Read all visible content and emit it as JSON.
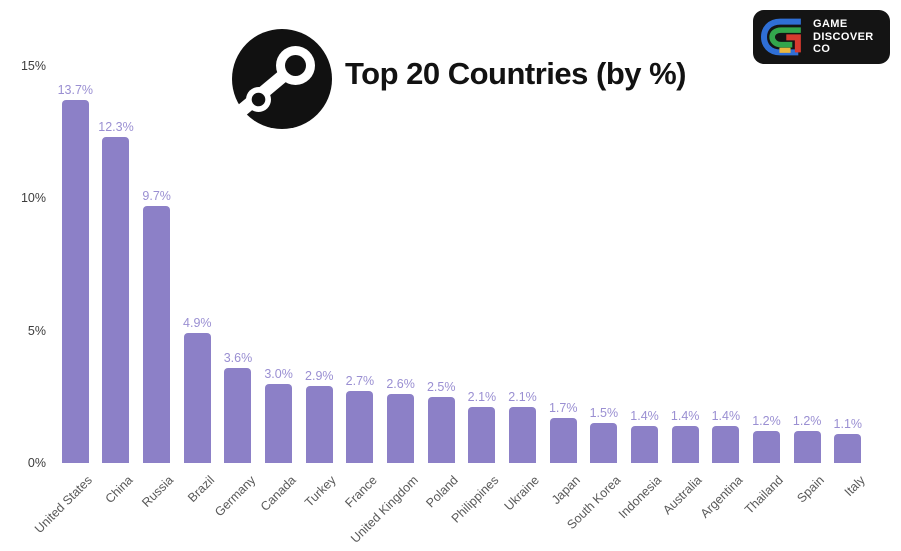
{
  "header": {
    "title": "Top 20 Countries (by %)",
    "brand_lines": [
      "GAME",
      "DISCOVER",
      "CO"
    ]
  },
  "colors": {
    "bar": "#8C80C7",
    "value_label": "#9A8FD2",
    "y_tick": "#3d3d3d",
    "x_tick": "#595959",
    "brand_blue": "#2F6FD6",
    "brand_green": "#33A64C",
    "brand_red": "#D63A2F",
    "brand_yellow": "#ECB73D",
    "brand_background": "#141414",
    "steam_black": "#111111"
  },
  "chart_data": {
    "type": "bar",
    "title": "Top 20 Countries (by %)",
    "categories": [
      "United States",
      "China",
      "Russia",
      "Brazil",
      "Germany",
      "Canada",
      "Turkey",
      "France",
      "United Kingdom",
      "Poland",
      "Philippines",
      "Ukraine",
      "Japan",
      "South Korea",
      "Indonesia",
      "Australia",
      "Argentina",
      "Thailand",
      "Spain",
      "Italy"
    ],
    "values": [
      13.7,
      12.3,
      9.7,
      4.9,
      3.6,
      3.0,
      2.9,
      2.7,
      2.6,
      2.5,
      2.1,
      2.1,
      1.7,
      1.5,
      1.4,
      1.4,
      1.4,
      1.2,
      1.2,
      1.1
    ],
    "value_labels": [
      "13.7%",
      "12.3%",
      "9.7%",
      "4.9%",
      "3.6%",
      "3.0%",
      "2.9%",
      "2.7%",
      "2.6%",
      "2.5%",
      "2.1%",
      "2.1%",
      "1.7%",
      "1.5%",
      "1.4%",
      "1.4%",
      "1.4%",
      "1.2%",
      "1.2%",
      "1.1%"
    ],
    "xlabel": "",
    "ylabel": "",
    "ylim": [
      0,
      15
    ],
    "yticks": [
      {
        "label": "0%",
        "value": 0
      },
      {
        "label": "5%",
        "value": 5
      },
      {
        "label": "10%",
        "value": 10
      },
      {
        "label": "15%",
        "value": 15
      }
    ],
    "grid": false,
    "legend": "none",
    "x_label_rotation_deg": -45
  }
}
